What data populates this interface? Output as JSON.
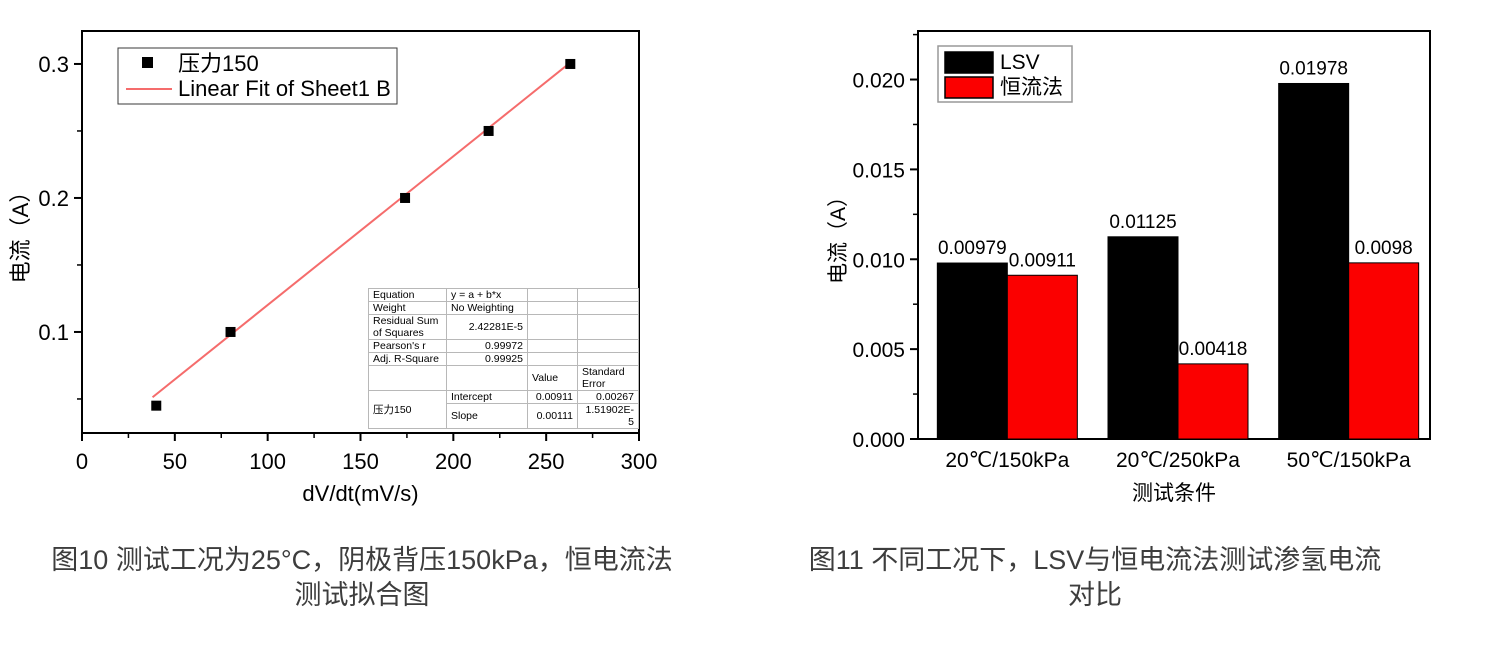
{
  "page": {
    "background": "#ffffff"
  },
  "captions": {
    "fig10": {
      "line1": "图10 测试工况为25°C，阴极背压150kPa，恒电流法",
      "line2": "测试拟合图"
    },
    "fig11": {
      "line1": "图11 不同工况下，LSV与恒电流法测试渗氢电流",
      "line2": "对比"
    }
  },
  "chart_data": [
    {
      "type": "scatter",
      "legend": [
        "压力150",
        "Linear Fit of Sheet1 B"
      ],
      "xlabel": "dV/dt(mV/s)",
      "ylabel": "电流（A）",
      "xlim": [
        0,
        300
      ],
      "ylim": [
        0.0246,
        0.3246
      ],
      "x_ticks": [
        0,
        50,
        100,
        150,
        200,
        250,
        300
      ],
      "x_minor_ticks": [
        25,
        75,
        125,
        175,
        225,
        275
      ],
      "y_ticks": [
        0.1,
        0.2,
        0.3
      ],
      "y_minor_ticks": [
        0.05,
        0.15,
        0.25
      ],
      "x": [
        40,
        80,
        174,
        219,
        263
      ],
      "y": [
        0.045,
        0.1,
        0.2,
        0.25,
        0.3
      ],
      "marker_color": "#000000",
      "fit_color": "#f56c6c",
      "fit": {
        "equation": "y = a + b*x",
        "intercept": 0.00911,
        "slope": 0.00111,
        "x_range": [
          38,
          264
        ]
      },
      "fit_table": {
        "rows": [
          {
            "label": "Equation",
            "value": "y = a + b*x"
          },
          {
            "label": "Weight",
            "value": "No Weighting"
          },
          {
            "label": "Residual Sum of Squares",
            "value": "2.42281E-5"
          },
          {
            "label": "Pearson's r",
            "value": "0.99972"
          },
          {
            "label": "Adj. R-Square",
            "value": "0.99925"
          }
        ],
        "value_header": "Value",
        "stderr_header": "Standard Error",
        "series_label": "压力150",
        "params": [
          {
            "name": "Intercept",
            "value": "0.00911",
            "stderr": "0.00267"
          },
          {
            "name": "Slope",
            "value": "0.00111",
            "stderr": "1.51902E-5"
          }
        ]
      }
    },
    {
      "type": "bar",
      "categories": [
        "20℃/150kPa",
        "20℃/250kPa",
        "50℃/150kPa"
      ],
      "series": [
        {
          "name": "LSV",
          "color": "#000000",
          "values": [
            0.00979,
            0.01125,
            0.01978
          ],
          "value_labels": [
            "0.00979",
            "0.01125",
            "0.01978"
          ]
        },
        {
          "name": "恒流法",
          "color": "#fb0000",
          "values": [
            0.00911,
            0.00418,
            0.0098
          ],
          "value_labels": [
            "0.00911",
            "0.00418",
            "0.0098"
          ]
        }
      ],
      "xlabel": "测试条件",
      "ylabel": "电流（A）",
      "ylim": [
        0,
        0.0227
      ],
      "y_ticks": [
        0,
        0.005,
        0.01,
        0.015,
        0.02
      ],
      "y_minor_ticks": [
        0.0025,
        0.0075,
        0.0125,
        0.0175,
        0.0225
      ],
      "legend_position": "top-left"
    }
  ]
}
